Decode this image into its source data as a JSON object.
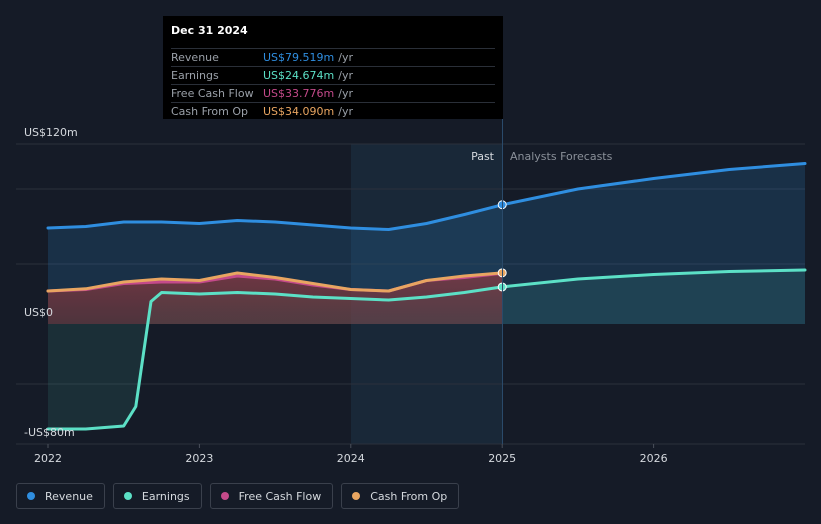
{
  "chart_data": {
    "type": "line",
    "x_unit": "year",
    "ylim": [
      -80,
      120
    ],
    "y_tick_labels": [
      "US$120m",
      "US$0",
      "-US$80m"
    ],
    "x_ticks": [
      2022,
      2023,
      2024,
      2025,
      2026
    ],
    "divider_label_past": "Past",
    "divider_label_forecast": "Analysts Forecasts",
    "divider_x": 2025.0,
    "series": [
      {
        "name": "Revenue",
        "color": "#2f8ee0",
        "x": [
          2022.0,
          2022.25,
          2022.5,
          2022.75,
          2023.0,
          2023.25,
          2023.5,
          2023.75,
          2024.0,
          2024.25,
          2024.5,
          2024.75,
          2025.0,
          2025.5,
          2026.0,
          2026.5,
          2027.0
        ],
        "y": [
          64,
          65,
          68,
          68,
          67,
          69,
          68,
          66,
          64,
          63,
          67,
          73,
          79.5,
          90,
          97,
          103,
          107
        ]
      },
      {
        "name": "Earnings",
        "color": "#5ce0c6",
        "x": [
          2022.0,
          2022.25,
          2022.5,
          2022.58,
          2022.68,
          2022.75,
          2023.0,
          2023.25,
          2023.5,
          2023.75,
          2024.0,
          2024.25,
          2024.5,
          2024.75,
          2025.0,
          2025.5,
          2026.0,
          2026.5,
          2027.0
        ],
        "y": [
          -70,
          -70,
          -68,
          -55,
          15,
          21,
          20,
          21,
          20,
          18,
          17,
          16,
          18,
          21,
          24.7,
          30,
          33,
          35,
          36
        ]
      },
      {
        "name": "Free Cash Flow",
        "color": "#c44a8a",
        "x": [
          2022.0,
          2022.25,
          2022.5,
          2022.75,
          2023.0,
          2023.25,
          2023.5,
          2023.75,
          2024.0,
          2024.25,
          2024.5,
          2024.75,
          2025.0
        ],
        "y": [
          22,
          23,
          27,
          28,
          28,
          32,
          30,
          26,
          23,
          22,
          29,
          31,
          33.8
        ]
      },
      {
        "name": "Cash From Op",
        "color": "#e8a561",
        "x": [
          2022.0,
          2022.25,
          2022.5,
          2022.75,
          2023.0,
          2023.25,
          2023.5,
          2023.75,
          2024.0,
          2024.25,
          2024.5,
          2024.75,
          2025.0
        ],
        "y": [
          22,
          23.5,
          28,
          30,
          29,
          34,
          31,
          27,
          23,
          22,
          29,
          32,
          34.1
        ]
      }
    ]
  },
  "tooltip": {
    "date": "Dec 31 2024",
    "rows": [
      {
        "label": "Revenue",
        "value": "US$79.519m",
        "unit": "/yr",
        "color": "#2f8ee0"
      },
      {
        "label": "Earnings",
        "value": "US$24.674m",
        "unit": "/yr",
        "color": "#5ce0c6"
      },
      {
        "label": "Free Cash Flow",
        "value": "US$33.776m",
        "unit": "/yr",
        "color": "#c44a8a"
      },
      {
        "label": "Cash From Op",
        "value": "US$34.090m",
        "unit": "/yr",
        "color": "#e8a561"
      }
    ]
  },
  "legend": [
    {
      "label": "Revenue",
      "color": "#2f8ee0"
    },
    {
      "label": "Earnings",
      "color": "#5ce0c6"
    },
    {
      "label": "Free Cash Flow",
      "color": "#c44a8a"
    },
    {
      "label": "Cash From Op",
      "color": "#e8a561"
    }
  ]
}
